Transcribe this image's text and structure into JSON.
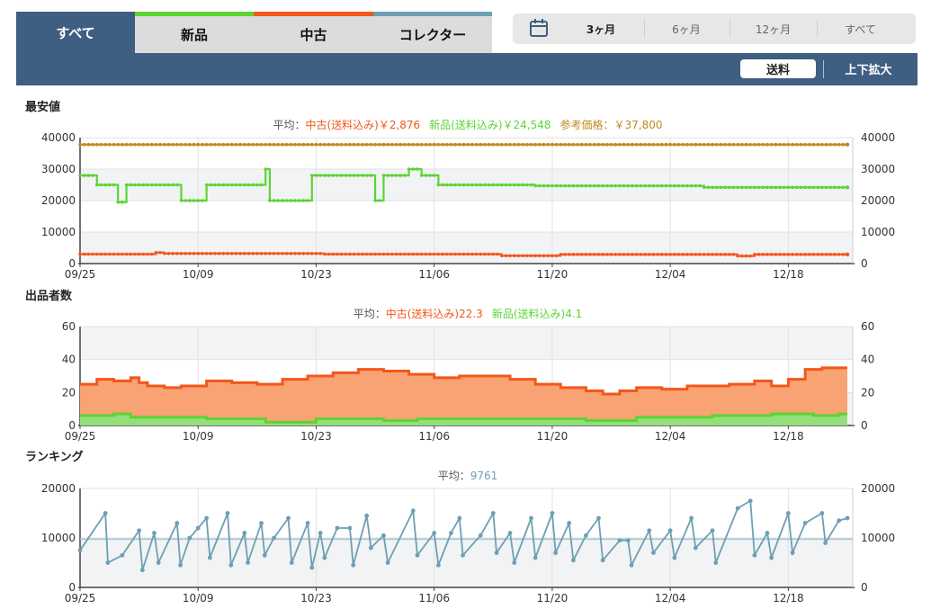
{
  "tabs": {
    "all": "すべて",
    "new": "新品",
    "used": "中古",
    "collector": "コレクター"
  },
  "range": {
    "options": [
      "3ヶ月",
      "6ヶ月",
      "12ヶ月",
      "すべて"
    ],
    "selected": "3ヶ月"
  },
  "buttons": {
    "shipping": "送料",
    "zoom": "上下拡大"
  },
  "colors": {
    "used": "#f2581b",
    "new": "#5cd435",
    "ref": "#c08a1e",
    "rank": "#6e9fb4",
    "used_fill": "#f9a274",
    "new_fill": "#93e07a",
    "header": "#3e5f82"
  },
  "x_ticks": [
    "09/25",
    "10/09",
    "10/23",
    "11/06",
    "11/20",
    "12/04",
    "12/18"
  ],
  "chart_data": [
    {
      "type": "line",
      "title": "最安値",
      "summary": [
        {
          "text": "平均：",
          "color": "#555555"
        },
        {
          "text": "中古(送料込み)￥2,876",
          "color": "#f2581b"
        },
        {
          "text": "新品(送料込み)￥24,548",
          "color": "#5cd435"
        },
        {
          "text": "参考価格：￥37,800",
          "color": "#c08a1e"
        }
      ],
      "ylim": [
        0,
        40000
      ],
      "yticks": [
        "0",
        "10000",
        "20000",
        "30000",
        "40000"
      ],
      "x_start": "09/25",
      "series": [
        {
          "name": "参考価格",
          "color": "#c08a1e",
          "steps": [
            [
              0,
              37800
            ],
            [
              91,
              37800
            ]
          ]
        },
        {
          "name": "新品(送料込み)",
          "color": "#5cd435",
          "steps": [
            [
              0,
              28000
            ],
            [
              2,
              25000
            ],
            [
              4.5,
              19500
            ],
            [
              5.5,
              25000
            ],
            [
              12,
              20000
            ],
            [
              15,
              25000
            ],
            [
              22,
              30000
            ],
            [
              22.5,
              20000
            ],
            [
              27.5,
              28000
            ],
            [
              35,
              20000
            ],
            [
              36,
              28000
            ],
            [
              39,
              30000
            ],
            [
              40.5,
              28000
            ],
            [
              42.5,
              25000
            ],
            [
              54,
              24700
            ],
            [
              74,
              24200
            ],
            [
              91,
              24200
            ]
          ]
        },
        {
          "name": "中古(送料込み)",
          "color": "#f2581b",
          "steps": [
            [
              0,
              3000
            ],
            [
              9,
              3500
            ],
            [
              10,
              3200
            ],
            [
              29,
              3000
            ],
            [
              50,
              2500
            ],
            [
              57,
              2900
            ],
            [
              78,
              2400
            ],
            [
              80,
              2900
            ],
            [
              91,
              2900
            ]
          ]
        }
      ]
    },
    {
      "type": "area",
      "title": "出品者数",
      "summary": [
        {
          "text": "平均：",
          "color": "#555555"
        },
        {
          "text": "中古(送料込み)22.3",
          "color": "#f2581b"
        },
        {
          "text": "新品(送料込み)4.1",
          "color": "#5cd435"
        }
      ],
      "ylim": [
        0,
        60
      ],
      "yticks": [
        "0",
        "20",
        "40",
        "60"
      ],
      "series": [
        {
          "name": "中古(送料込み)",
          "color": "#f2581b",
          "steps": [
            [
              0,
              25
            ],
            [
              2,
              28
            ],
            [
              4,
              27
            ],
            [
              6,
              29
            ],
            [
              7,
              26
            ],
            [
              8,
              24
            ],
            [
              10,
              23
            ],
            [
              12,
              24
            ],
            [
              15,
              27
            ],
            [
              18,
              26
            ],
            [
              21,
              25
            ],
            [
              24,
              28
            ],
            [
              27,
              30
            ],
            [
              30,
              32
            ],
            [
              33,
              34
            ],
            [
              36,
              33
            ],
            [
              39,
              31
            ],
            [
              42,
              29
            ],
            [
              45,
              30
            ],
            [
              48,
              30
            ],
            [
              51,
              28
            ],
            [
              54,
              25
            ],
            [
              57,
              23
            ],
            [
              60,
              21
            ],
            [
              62,
              19
            ],
            [
              64,
              21
            ],
            [
              66,
              23
            ],
            [
              69,
              22
            ],
            [
              72,
              24
            ],
            [
              75,
              24
            ],
            [
              77,
              25
            ],
            [
              80,
              27
            ],
            [
              82,
              24
            ],
            [
              84,
              28
            ],
            [
              86,
              34
            ],
            [
              88,
              35
            ],
            [
              91,
              35
            ]
          ]
        },
        {
          "name": "新品(送料込み)",
          "color": "#5cd435",
          "steps": [
            [
              0,
              6
            ],
            [
              4,
              7
            ],
            [
              6,
              5
            ],
            [
              15,
              4
            ],
            [
              22,
              2
            ],
            [
              28,
              4
            ],
            [
              36,
              3
            ],
            [
              40,
              4
            ],
            [
              48,
              4
            ],
            [
              60,
              3
            ],
            [
              66,
              5
            ],
            [
              75,
              6
            ],
            [
              82,
              7
            ],
            [
              87,
              6
            ],
            [
              90,
              7
            ],
            [
              91,
              7
            ]
          ]
        }
      ]
    },
    {
      "type": "line",
      "title": "ランキング",
      "summary": [
        {
          "text": "平均：",
          "color": "#555555"
        },
        {
          "text": "9761",
          "color": "#6e9fb4"
        }
      ],
      "ylim": [
        0,
        20000
      ],
      "yticks": [
        "0",
        "10000",
        "20000"
      ],
      "average": 9761,
      "series": [
        {
          "name": "ランキング",
          "color": "#6e9fb4",
          "points": [
            [
              0,
              7500
            ],
            [
              3,
              15000
            ],
            [
              3.3,
              5000
            ],
            [
              5,
              6500
            ],
            [
              7,
              11500
            ],
            [
              7.4,
              3500
            ],
            [
              8.8,
              11000
            ],
            [
              9.3,
              5000
            ],
            [
              11.5,
              13000
            ],
            [
              11.9,
              4500
            ],
            [
              13,
              10000
            ],
            [
              14,
              12000
            ],
            [
              15,
              14000
            ],
            [
              15.4,
              6000
            ],
            [
              17.5,
              15000
            ],
            [
              17.9,
              4500
            ],
            [
              19.5,
              11000
            ],
            [
              19.9,
              5000
            ],
            [
              21.5,
              13000
            ],
            [
              21.9,
              6500
            ],
            [
              23,
              10000
            ],
            [
              24.7,
              14000
            ],
            [
              25.1,
              5000
            ],
            [
              27,
              13000
            ],
            [
              27.5,
              4000
            ],
            [
              28.5,
              11000
            ],
            [
              29,
              6000
            ],
            [
              30.5,
              12000
            ],
            [
              32,
              12000
            ],
            [
              32.4,
              4500
            ],
            [
              34,
              14500
            ],
            [
              34.5,
              8000
            ],
            [
              36,
              10500
            ],
            [
              36.5,
              5000
            ],
            [
              39.5,
              15500
            ],
            [
              40,
              6500
            ],
            [
              42,
              11000
            ],
            [
              42.5,
              4500
            ],
            [
              44,
              11000
            ],
            [
              45,
              14000
            ],
            [
              45.4,
              6500
            ],
            [
              47.5,
              10500
            ],
            [
              49,
              15000
            ],
            [
              49.4,
              7000
            ],
            [
              51,
              11000
            ],
            [
              51.5,
              5000
            ],
            [
              53.5,
              14000
            ],
            [
              54,
              6000
            ],
            [
              56,
              15000
            ],
            [
              56.4,
              7000
            ],
            [
              58,
              13000
            ],
            [
              58.5,
              5500
            ],
            [
              60,
              10500
            ],
            [
              61.5,
              14000
            ],
            [
              62,
              5500
            ],
            [
              64,
              9500
            ],
            [
              65,
              9500
            ],
            [
              65.4,
              4500
            ],
            [
              67.5,
              11500
            ],
            [
              68,
              7000
            ],
            [
              70,
              11500
            ],
            [
              70.5,
              6000
            ],
            [
              72.5,
              14000
            ],
            [
              73,
              8000
            ],
            [
              75,
              11500
            ],
            [
              75.4,
              5000
            ],
            [
              78,
              16000
            ],
            [
              79.5,
              17500
            ],
            [
              80,
              6500
            ],
            [
              81.5,
              11000
            ],
            [
              82,
              6000
            ],
            [
              84,
              15000
            ],
            [
              84.5,
              7000
            ],
            [
              86,
              13000
            ],
            [
              88,
              15000
            ],
            [
              88.4,
              9000
            ],
            [
              90,
              13500
            ],
            [
              91,
              14000
            ]
          ]
        }
      ]
    }
  ]
}
